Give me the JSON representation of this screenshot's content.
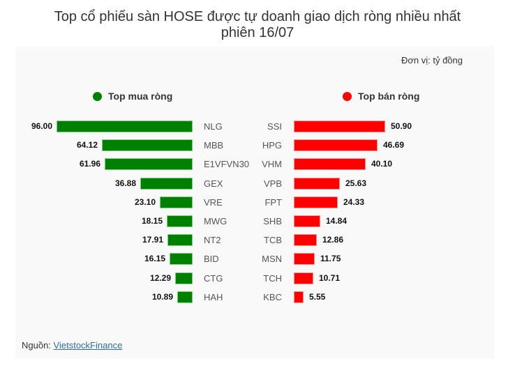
{
  "title_line1": "Top cổ phiếu sàn HOSE được tự doanh giao dịch ròng nhiều nhất",
  "title_line2": "phiên 16/07",
  "unit": "Đơn vị: tỷ đồng",
  "legend": {
    "buy": {
      "label": "Top mua ròng",
      "color": "#008000"
    },
    "sell": {
      "label": "Top bán ròng",
      "color": "#ff0000"
    }
  },
  "source": {
    "prefix": "Nguồn:",
    "link_text": "VietstockFinance"
  },
  "chart_data": {
    "type": "bar",
    "title": "Top cổ phiếu sàn HOSE được tự doanh giao dịch ròng nhiều nhất phiên 16/07",
    "unit": "tỷ đồng",
    "orientation": "horizontal",
    "grid": false,
    "legend_position": "top",
    "series": [
      {
        "name": "Top mua ròng",
        "color": "#008000",
        "categories": [
          "NLG",
          "MBB",
          "E1VFVN30",
          "GEX",
          "VRE",
          "MWG",
          "NT2",
          "BID",
          "CTG",
          "HAH"
        ],
        "values": [
          96.0,
          64.12,
          61.96,
          36.88,
          23.1,
          18.15,
          17.91,
          16.15,
          12.29,
          10.89
        ],
        "labels": [
          "96.00",
          "64.12",
          "61.96",
          "36.88",
          "23.10",
          "18.15",
          "17.91",
          "16.15",
          "12.29",
          "10.89"
        ]
      },
      {
        "name": "Top bán ròng",
        "color": "#ff0000",
        "categories": [
          "SSI",
          "HPG",
          "VHM",
          "VPB",
          "FPT",
          "SHB",
          "TCB",
          "MSN",
          "TCH",
          "KBC"
        ],
        "values": [
          50.9,
          46.69,
          40.1,
          25.63,
          24.33,
          14.84,
          12.86,
          11.75,
          10.71,
          5.55
        ],
        "labels": [
          "50.90",
          "46.69",
          "40.10",
          "25.63",
          "24.33",
          "14.84",
          "12.86",
          "11.75",
          "10.71",
          "5.55"
        ]
      }
    ]
  }
}
